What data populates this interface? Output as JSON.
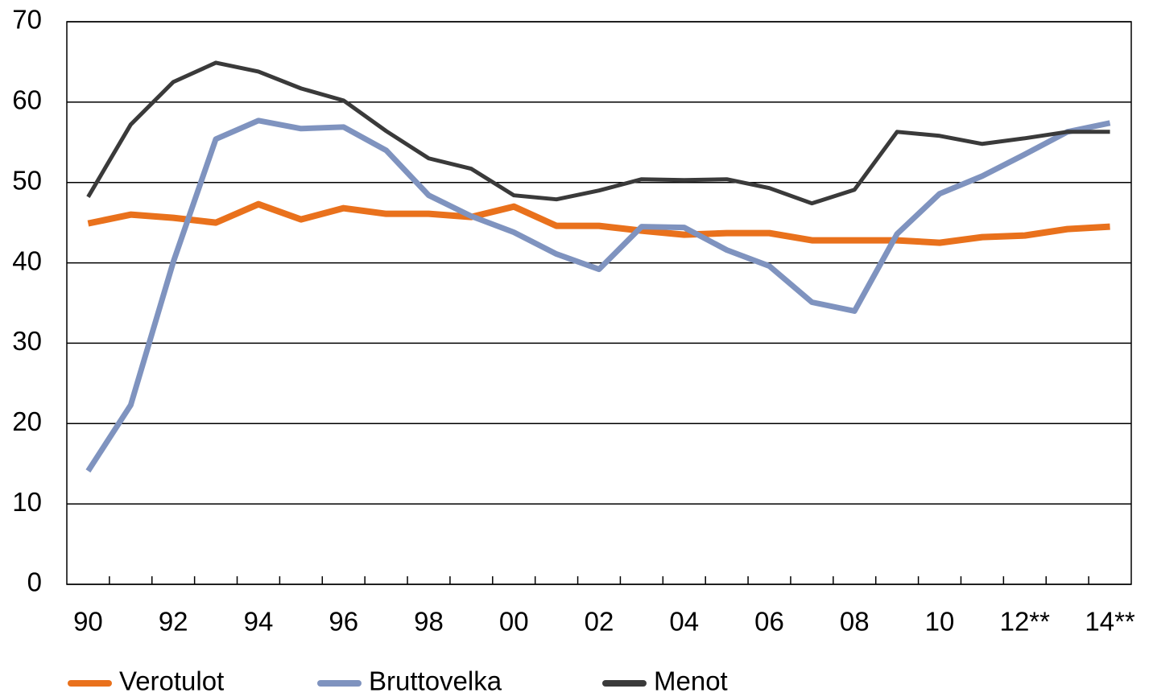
{
  "chart_data": {
    "type": "line",
    "categories": [
      "90",
      null,
      "92",
      null,
      "94",
      null,
      "96",
      null,
      "98",
      null,
      "00",
      null,
      "02",
      null,
      "04",
      null,
      "06",
      null,
      "08",
      null,
      "10",
      null,
      "12**",
      null,
      "14**"
    ],
    "series": [
      {
        "name": "Verotulot",
        "color": "#e9711c",
        "values": [
          44.9,
          46.0,
          45.6,
          45.0,
          47.3,
          45.4,
          46.8,
          46.1,
          46.1,
          45.7,
          47.0,
          44.6,
          44.6,
          44.0,
          43.5,
          43.7,
          43.7,
          42.8,
          42.8,
          42.8,
          42.5,
          43.2,
          43.4,
          44.2,
          44.5
        ]
      },
      {
        "name": "Bruttovelka",
        "color": "#7f93bf",
        "values": [
          14.1,
          22.3,
          40.1,
          55.4,
          57.7,
          56.7,
          56.9,
          54.0,
          48.4,
          45.8,
          43.8,
          41.1,
          39.2,
          44.5,
          44.4,
          41.6,
          39.6,
          35.1,
          34.0,
          43.6,
          48.6,
          50.8,
          53.5,
          56.3,
          57.4
        ]
      },
      {
        "name": "Menot",
        "color": "#3a3a3a",
        "values": [
          48.2,
          57.2,
          62.5,
          64.9,
          63.8,
          61.7,
          60.2,
          56.4,
          53.0,
          51.7,
          48.4,
          47.9,
          49.0,
          50.4,
          50.3,
          50.4,
          49.3,
          47.4,
          49.1,
          56.3,
          55.8,
          54.8,
          55.5,
          56.3,
          56.3
        ]
      }
    ],
    "ylim": [
      0,
      70
    ],
    "yticks": [
      0,
      10,
      20,
      30,
      40,
      50,
      60,
      70
    ],
    "grid": true,
    "legend": "bottom"
  }
}
